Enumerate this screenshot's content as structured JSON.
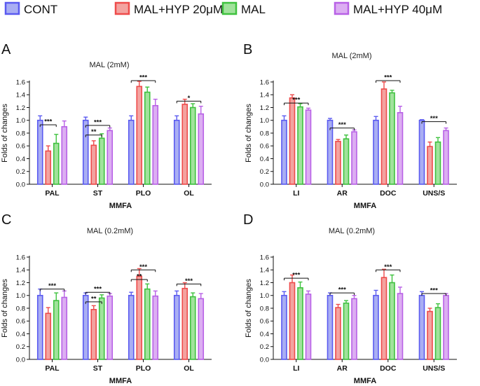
{
  "legend": [
    {
      "name": "CONT",
      "stroke": "#5a5af0",
      "fill": "#a9aef3"
    },
    {
      "name": "MAL+HYP 20μM",
      "stroke": "#ee4b4b",
      "fill": "#f3a3a0"
    },
    {
      "name": "MAL",
      "stroke": "#3fc23f",
      "fill": "#a1e29c"
    },
    {
      "name": "MAL+HYP 40μM",
      "stroke": "#b861e6",
      "fill": "#dcaef2"
    }
  ],
  "chart_data": [
    {
      "panel": "A",
      "type": "bar",
      "title": "MAL (2mM)",
      "xlabel": "MMFA",
      "ylabel": "Folds of changes",
      "ylim": [
        0,
        1.6
      ],
      "yticks": [
        "0.0",
        "0.2",
        "0.4",
        "0.6",
        "0.8",
        "1.0",
        "1.2",
        "1.4",
        "1.6"
      ],
      "categories": [
        "PAL",
        "ST",
        "PLO",
        "OL"
      ],
      "series": [
        {
          "name": "CONT",
          "values": [
            1.0,
            1.0,
            1.0,
            1.0
          ],
          "errors": [
            0.07,
            0.05,
            0.07,
            0.07
          ]
        },
        {
          "name": "MAL+HYP 20μM",
          "values": [
            0.52,
            0.61,
            1.53,
            1.25
          ],
          "errors": [
            0.08,
            0.07,
            0.08,
            0.08
          ]
        },
        {
          "name": "MAL",
          "values": [
            0.64,
            0.72,
            1.44,
            1.2
          ],
          "errors": [
            0.14,
            0.07,
            0.08,
            0.06
          ]
        },
        {
          "name": "MAL+HYP 40μM",
          "values": [
            0.9,
            0.84,
            1.23,
            1.1
          ],
          "errors": [
            0.09,
            0.04,
            0.1,
            0.12
          ]
        }
      ],
      "annotations": [
        {
          "label": "***",
          "cat": 0,
          "from": 0,
          "to": 2,
          "y": 0.93
        },
        {
          "label": "**",
          "cat": 1,
          "from": 0,
          "to": 2,
          "y": 0.77
        },
        {
          "label": "***",
          "cat": 1,
          "from": 0,
          "to": 3,
          "y": 0.92
        },
        {
          "label": "***",
          "cat": 2,
          "from": 0,
          "to": 3,
          "y": 1.62
        },
        {
          "label": "*",
          "cat": 3,
          "from": 0,
          "to": 3,
          "y": 1.3
        }
      ]
    },
    {
      "panel": "B",
      "type": "bar",
      "title": "MAL (2mM)",
      "xlabel": "MMFA",
      "ylabel": "Folds of changes",
      "ylim": [
        0,
        1.6
      ],
      "yticks": [
        "0.0",
        "0.2",
        "0.4",
        "0.6",
        "0.8",
        "1.0",
        "1.2",
        "1.4",
        "1.6"
      ],
      "categories": [
        "LI",
        "AR",
        "DOC",
        "UNS/S"
      ],
      "series": [
        {
          "name": "CONT",
          "values": [
            1.0,
            1.0,
            1.0,
            1.0
          ],
          "errors": [
            0.07,
            0.03,
            0.06,
            0.01
          ]
        },
        {
          "name": "MAL+HYP 20μM",
          "values": [
            1.35,
            0.67,
            1.49,
            0.59
          ],
          "errors": [
            0.05,
            0.03,
            0.11,
            0.07
          ]
        },
        {
          "name": "MAL",
          "values": [
            1.21,
            0.71,
            1.43,
            0.66
          ],
          "errors": [
            0.05,
            0.06,
            0.04,
            0.07
          ]
        },
        {
          "name": "MAL+HYP 40μM",
          "values": [
            1.16,
            0.82,
            1.12,
            0.84
          ],
          "errors": [
            0.03,
            0.03,
            0.1,
            0.04
          ]
        }
      ],
      "annotations": [
        {
          "label": "***",
          "cat": 0,
          "from": 0,
          "to": 3,
          "y": 1.27
        },
        {
          "label": "***",
          "cat": 1,
          "from": 0,
          "to": 3,
          "y": 0.88
        },
        {
          "label": "***",
          "cat": 2,
          "from": 0,
          "to": 3,
          "y": 1.62
        },
        {
          "label": "***",
          "cat": 3,
          "from": 0,
          "to": 3,
          "y": 0.98
        }
      ]
    },
    {
      "panel": "C",
      "type": "bar",
      "title": "MAL (0.2mM)",
      "xlabel": "MMFA",
      "ylabel": "Folds of changes",
      "ylim": [
        0,
        1.6
      ],
      "yticks": [
        "0.0",
        "0.2",
        "0.4",
        "0.6",
        "0.8",
        "1.0",
        "1.2",
        "1.4",
        "1.6"
      ],
      "categories": [
        "PAL",
        "ST",
        "PLO",
        "OL"
      ],
      "series": [
        {
          "name": "CONT",
          "values": [
            1.0,
            1.0,
            1.0,
            1.0
          ],
          "errors": [
            0.1,
            0.04,
            0.05,
            0.07
          ]
        },
        {
          "name": "MAL+HYP 20μM",
          "values": [
            0.72,
            0.78,
            1.3,
            1.11
          ],
          "errors": [
            0.09,
            0.06,
            0.12,
            0.09
          ]
        },
        {
          "name": "MAL",
          "values": [
            0.92,
            0.96,
            1.1,
            0.98
          ],
          "errors": [
            0.12,
            0.05,
            0.08,
            0.06
          ]
        },
        {
          "name": "MAL+HYP 40μM",
          "values": [
            0.97,
            0.99,
            0.99,
            0.95
          ],
          "errors": [
            0.1,
            0.04,
            0.08,
            0.08
          ]
        }
      ],
      "annotations": [
        {
          "label": "***",
          "cat": 0,
          "from": 0,
          "to": 3,
          "y": 1.1
        },
        {
          "label": "**",
          "cat": 1,
          "from": 0,
          "to": 2,
          "y": 0.9
        },
        {
          "label": "***",
          "cat": 1,
          "from": 0,
          "to": 3,
          "y": 1.05
        },
        {
          "label": "**",
          "cat": 2,
          "from": 0,
          "to": 2,
          "y": 1.25
        },
        {
          "label": "***",
          "cat": 2,
          "from": 0,
          "to": 3,
          "y": 1.4
        },
        {
          "label": "***",
          "cat": 3,
          "from": 0,
          "to": 3,
          "y": 1.18
        }
      ]
    },
    {
      "panel": "D",
      "type": "bar",
      "title": "MAL (0.2mM)",
      "xlabel": "MMFA",
      "ylabel": "Folds of changes",
      "ylim": [
        0,
        1.6
      ],
      "yticks": [
        "0.0",
        "0.2",
        "0.4",
        "0.6",
        "0.8",
        "1.0",
        "1.2",
        "1.4",
        "1.6"
      ],
      "categories": [
        "LI",
        "AR",
        "DOC",
        "UNS/S"
      ],
      "series": [
        {
          "name": "CONT",
          "values": [
            1.0,
            1.0,
            1.0,
            1.0
          ],
          "errors": [
            0.06,
            0.04,
            0.08,
            0.06
          ]
        },
        {
          "name": "MAL+HYP 20μM",
          "values": [
            1.2,
            0.81,
            1.28,
            0.75
          ],
          "errors": [
            0.12,
            0.05,
            0.13,
            0.05
          ]
        },
        {
          "name": "MAL",
          "values": [
            1.12,
            0.88,
            1.2,
            0.81
          ],
          "errors": [
            0.09,
            0.04,
            0.12,
            0.06
          ]
        },
        {
          "name": "MAL+HYP 40μM",
          "values": [
            1.02,
            0.95,
            1.03,
            1.0
          ],
          "errors": [
            0.05,
            0.05,
            0.1,
            0.03
          ]
        }
      ],
      "annotations": [
        {
          "label": "***",
          "cat": 0,
          "from": 0,
          "to": 3,
          "y": 1.27
        },
        {
          "label": "***",
          "cat": 1,
          "from": 0,
          "to": 3,
          "y": 1.04
        },
        {
          "label": "***",
          "cat": 2,
          "from": 0,
          "to": 3,
          "y": 1.4
        },
        {
          "label": "***",
          "cat": 3,
          "from": 0,
          "to": 3,
          "y": 1.03
        }
      ]
    }
  ]
}
